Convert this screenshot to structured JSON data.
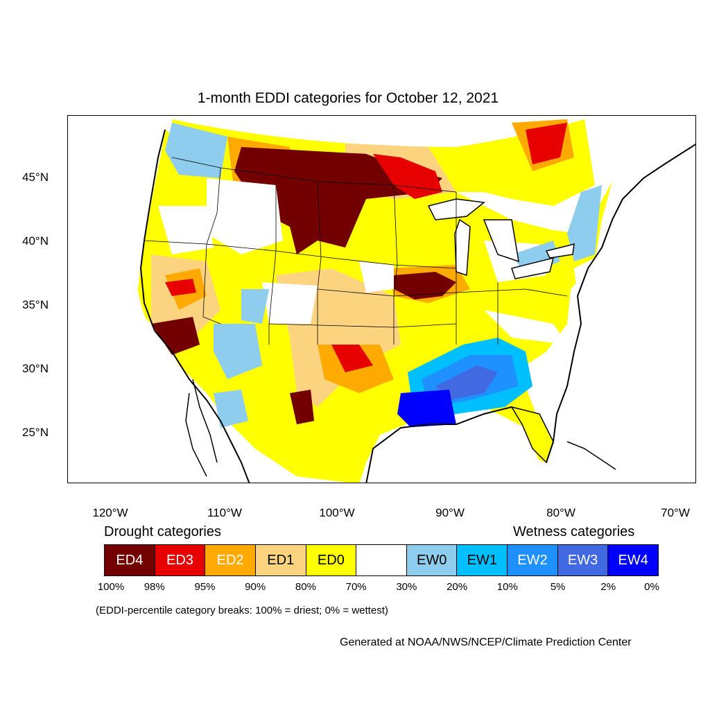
{
  "title": "1-month EDDI categories for October 12, 2021",
  "lat_labels": [
    "45°N",
    "40°N",
    "35°N",
    "30°N",
    "25°N"
  ],
  "lon_labels": [
    "120°W",
    "110°W",
    "100°W",
    "90°W",
    "80°W",
    "70°W"
  ],
  "legend": {
    "drought_heading": "Drought categories",
    "wetness_heading": "Wetness categories",
    "boxes": [
      {
        "label": "ED4",
        "color": "#730000",
        "text_color": "#ffffff"
      },
      {
        "label": "ED3",
        "color": "#e60000",
        "text_color": "#ffffff"
      },
      {
        "label": "ED2",
        "color": "#ffaa00",
        "text_color": "#ffffff"
      },
      {
        "label": "ED1",
        "color": "#fcd37f",
        "text_color": "#000000"
      },
      {
        "label": "ED0",
        "color": "#ffff00",
        "text_color": "#000000"
      },
      {
        "label": "",
        "color": "#ffffff",
        "text_color": "#000000"
      },
      {
        "label": "EW0",
        "color": "#8fcdef",
        "text_color": "#000000"
      },
      {
        "label": "EW1",
        "color": "#00bfff",
        "text_color": "#000000"
      },
      {
        "label": "EW2",
        "color": "#1e90ff",
        "text_color": "#ffffff"
      },
      {
        "label": "EW3",
        "color": "#4169e1",
        "text_color": "#ffffff"
      },
      {
        "label": "EW4",
        "color": "#0000ff",
        "text_color": "#ffffff"
      }
    ],
    "percentiles": [
      "100%",
      "98%",
      "95%",
      "90%",
      "80%",
      "70%",
      "30%",
      "20%",
      "10%",
      "5%",
      "2%",
      "0%"
    ]
  },
  "note": "(EDDI-percentile category breaks: 100% = driest; 0% = wettest)",
  "credit": "Generated at NOAA/NWS/NCEP/Climate Prediction Center"
}
